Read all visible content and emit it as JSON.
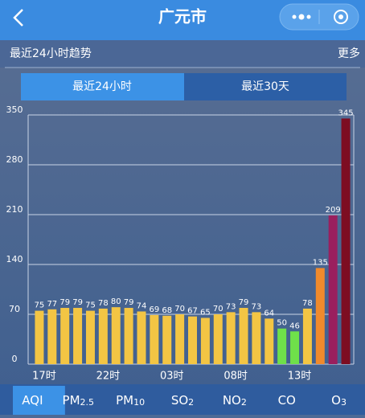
{
  "header": {
    "title": "广元市"
  },
  "section": {
    "title": "最近24小时趋势",
    "more": "更多"
  },
  "range_tabs": [
    "最近24小时",
    "最近30天"
  ],
  "chart_data": {
    "type": "bar",
    "categories": [
      "17时",
      null,
      null,
      null,
      null,
      "22时",
      null,
      null,
      null,
      null,
      "03时",
      null,
      null,
      null,
      null,
      "08时",
      null,
      null,
      null,
      null,
      "13时",
      null,
      null,
      null,
      null
    ],
    "values": [
      75,
      77,
      79,
      79,
      75,
      78,
      80,
      79,
      74,
      69,
      68,
      70,
      67,
      65,
      70,
      73,
      79,
      73,
      64,
      50,
      46,
      78,
      135,
      209,
      345
    ],
    "colors": [
      "#f3c544",
      "#f3c544",
      "#f3c544",
      "#f3c544",
      "#f3c544",
      "#f3c544",
      "#f3c544",
      "#f3c544",
      "#f3c544",
      "#f3c544",
      "#f3c544",
      "#f3c544",
      "#f3c544",
      "#f3c544",
      "#f3c544",
      "#f3c544",
      "#f3c544",
      "#f3c544",
      "#f3c544",
      "#6fe04a",
      "#6fe04a",
      "#f3c544",
      "#f08a2c",
      "#9a1f5e",
      "#7d0d22"
    ],
    "ylim": [
      0,
      350
    ],
    "yticks": [
      0,
      70,
      140,
      210,
      280,
      350
    ],
    "grid": true
  },
  "pollutant_tabs": [
    {
      "main": "AQI"
    },
    {
      "main": "PM",
      "sub": "2.5"
    },
    {
      "main": "PM",
      "sub": "10"
    },
    {
      "main": "SO",
      "sub": "2"
    },
    {
      "main": "NO",
      "sub": "2"
    },
    {
      "main": "CO"
    },
    {
      "main": "O",
      "sub": "3"
    }
  ]
}
